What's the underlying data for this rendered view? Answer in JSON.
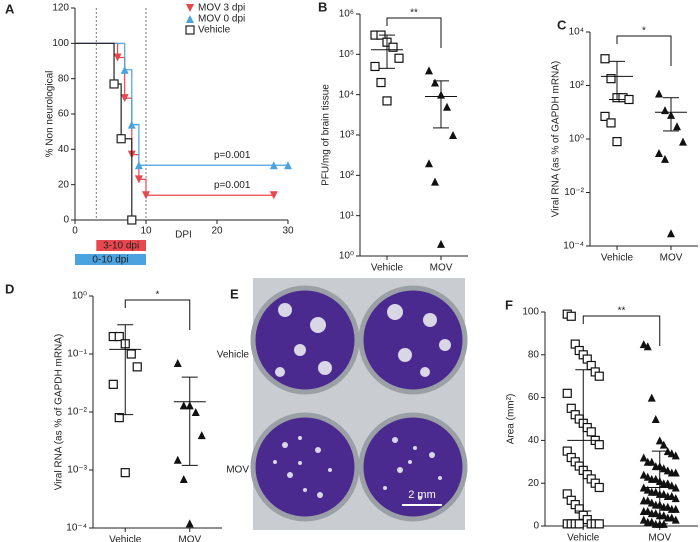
{
  "chart_data": [
    {
      "type": "step",
      "panel": "A",
      "xlabel": "DPI",
      "ylabel": "% Non neurological",
      "xlim": [
        0,
        30
      ],
      "xticks": [
        0,
        10,
        20,
        30
      ],
      "ylim": [
        0,
        120
      ],
      "yticks": [
        0,
        20,
        40,
        60,
        80,
        100,
        120
      ],
      "series": [
        {
          "name": "MOV 3 dpi",
          "color": "#e8474e",
          "marker": "triangle-down",
          "x": [
            0,
            6,
            7,
            8,
            9,
            10,
            28
          ],
          "values": [
            100,
            92,
            69,
            37,
            23,
            14,
            14
          ]
        },
        {
          "name": "MOV 0 dpi",
          "color": "#4aa3df",
          "marker": "triangle-up",
          "x": [
            0,
            7,
            8,
            9,
            28,
            30
          ],
          "values": [
            100,
            85,
            54,
            31,
            31,
            31
          ]
        },
        {
          "name": "Vehicle",
          "color": "#222222",
          "marker": "square-open",
          "x": [
            0,
            5.5,
            6.5,
            8
          ],
          "values": [
            100,
            77,
            46,
            0
          ]
        }
      ],
      "vlines": [
        3,
        10
      ],
      "annotations": [
        "p=0.001",
        "p=0.001"
      ],
      "treatment_bars": [
        {
          "label": "3-10 dpi",
          "start": 3,
          "end": 10,
          "color": "#e8474e"
        },
        {
          "label": "0-10 dpi",
          "start": 0,
          "end": 10,
          "color": "#4aa3df"
        }
      ]
    },
    {
      "type": "dotplot",
      "panel": "B",
      "ylabel": "PFU/mg of brain tissue",
      "log": true,
      "ylim": [
        1,
        1000000
      ],
      "yticks": [
        {
          "value": 1,
          "label": "10⁰"
        },
        {
          "value": 10,
          "label": "10¹"
        },
        {
          "value": 100,
          "label": "10²"
        },
        {
          "value": 1000,
          "label": "10³"
        },
        {
          "value": 10000,
          "label": "10⁴"
        },
        {
          "value": 100000,
          "label": "10⁵"
        },
        {
          "value": 1000000,
          "label": "10⁶"
        }
      ],
      "categories": [
        "Vehicle",
        "MOV"
      ],
      "markers": [
        "square-open",
        "triangle"
      ],
      "significance": "**",
      "values": [
        [
          300000,
          300000,
          200000,
          150000,
          80000,
          50000,
          20000,
          7000
        ],
        [
          40000,
          20000,
          10000,
          5000,
          1000,
          200,
          70,
          2
        ]
      ],
      "mean": [
        130000,
        9000
      ],
      "sd_lower": [
        45000,
        1500
      ],
      "sd_upper": [
        300000,
        22000
      ]
    },
    {
      "type": "dotplot",
      "panel": "C",
      "ylabel": "Viral RNA (as % of GAPDH mRNA)",
      "log": true,
      "ylim": [
        0.0001,
        10000
      ],
      "yticks": [
        {
          "value": 0.0001,
          "label": "10⁻⁴"
        },
        {
          "value": 0.01,
          "label": "10⁻²"
        },
        {
          "value": 1,
          "label": "10⁰"
        },
        {
          "value": 100,
          "label": "10²"
        },
        {
          "value": 10000,
          "label": "10⁴"
        }
      ],
      "categories": [
        "Vehicle",
        "MOV"
      ],
      "markers": [
        "square-open",
        "triangle"
      ],
      "significance": "*",
      "values": [
        [
          1000,
          180,
          35,
          35,
          30,
          7,
          4,
          0.8
        ],
        [
          50,
          12,
          8,
          3,
          0.8,
          0.3,
          0.18,
          0.0003
        ]
      ],
      "mean": [
        220,
        10
      ],
      "sd_lower": [
        30,
        2
      ],
      "sd_upper": [
        800,
        35
      ]
    },
    {
      "type": "dotplot",
      "panel": "D",
      "ylabel": "Viral RNA (as % of GAPDH mRNA)",
      "log": true,
      "ylim": [
        0.0001,
        1
      ],
      "yticks": [
        {
          "value": 0.0001,
          "label": "10⁻⁴"
        },
        {
          "value": 0.001,
          "label": "10⁻³"
        },
        {
          "value": 0.01,
          "label": "10⁻²"
        },
        {
          "value": 0.1,
          "label": "10⁻¹"
        },
        {
          "value": 1,
          "label": "10⁰"
        }
      ],
      "categories": [
        "Vehicle",
        "MOV"
      ],
      "markers": [
        "square-open",
        "triangle"
      ],
      "significance": "*",
      "values": [
        [
          0.2,
          0.2,
          0.15,
          0.1,
          0.06,
          0.03,
          0.008,
          0.0009
        ],
        [
          0.07,
          0.013,
          0.013,
          0.01,
          0.004,
          0.0015,
          0.0007,
          0.00012
        ]
      ],
      "mean": [
        0.12,
        0.015
      ],
      "sd_lower": [
        0.009,
        0.0012
      ],
      "sd_upper": [
        0.32,
        0.04
      ]
    },
    {
      "type": "image",
      "panel": "E",
      "labels": [
        "Vehicle",
        "MOV"
      ],
      "scale_bar": "2 mm"
    },
    {
      "type": "dotplot",
      "panel": "F",
      "ylabel": "Area (mm²)",
      "log": false,
      "ylim": [
        0,
        100
      ],
      "yticks": [
        0,
        20,
        40,
        60,
        80,
        100
      ],
      "categories": [
        "Vehicle",
        "MOV"
      ],
      "markers": [
        "square-open",
        "triangle"
      ],
      "significance": "**",
      "values": [
        [
          99,
          98,
          85,
          82,
          80,
          78,
          75,
          72,
          70,
          62,
          55,
          52,
          50,
          48,
          46,
          44,
          40,
          38,
          35,
          32,
          30,
          28,
          26,
          24,
          22,
          20,
          18,
          15,
          12,
          10,
          8,
          5,
          3,
          1,
          1,
          1,
          1,
          1,
          1,
          1
        ],
        [
          85,
          84,
          60,
          50,
          40,
          38,
          35,
          34,
          33,
          32,
          30,
          30,
          28,
          28,
          27,
          26,
          25,
          25,
          24,
          23,
          22,
          22,
          21,
          20,
          20,
          19,
          18,
          18,
          17,
          16,
          16,
          15,
          15,
          14,
          14,
          13,
          12,
          12,
          11,
          10,
          10,
          9,
          9,
          8,
          8,
          7,
          7,
          6,
          6,
          5,
          5,
          4,
          4,
          3,
          3,
          2,
          2,
          1,
          1,
          1
        ]
      ],
      "mean": [
        40,
        18
      ],
      "sd_lower": [
        7,
        1
      ],
      "sd_upper": [
        73,
        35
      ]
    }
  ]
}
